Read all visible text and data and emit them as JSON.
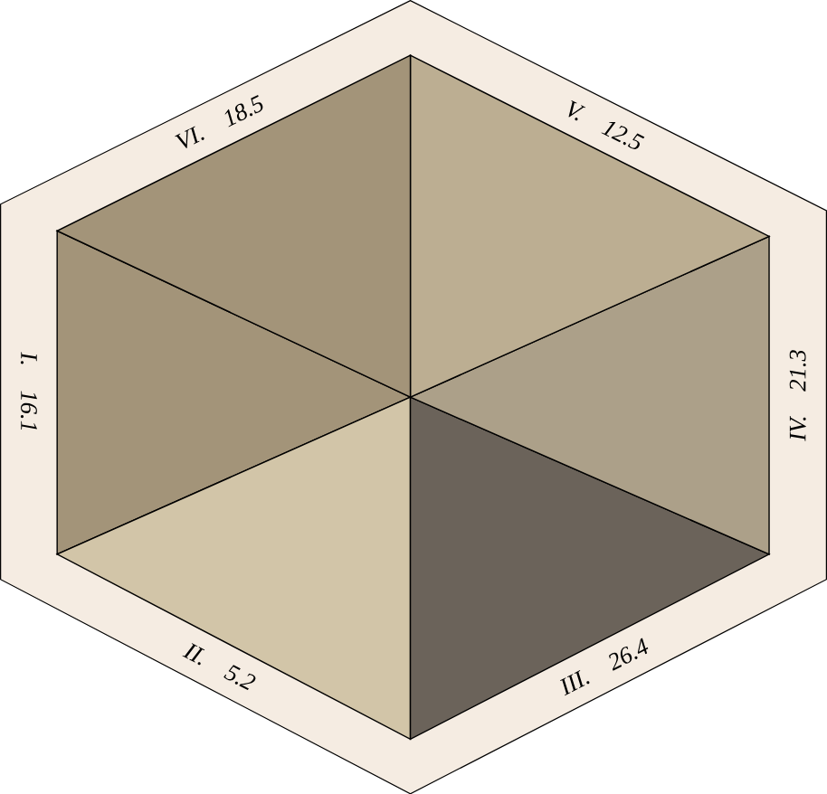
{
  "chart_data": {
    "type": "other",
    "categories": [
      "I.",
      "II.",
      "III.",
      "IV.",
      "V.",
      "VI."
    ],
    "values": [
      16.1,
      5.2,
      26.4,
      21.3,
      12.5,
      18.5
    ],
    "data_labels": true,
    "colors": [
      "#a39479",
      "#d2c5a8",
      "#6b635a",
      "#aca089",
      "#bcae92",
      "#a39479"
    ]
  }
}
